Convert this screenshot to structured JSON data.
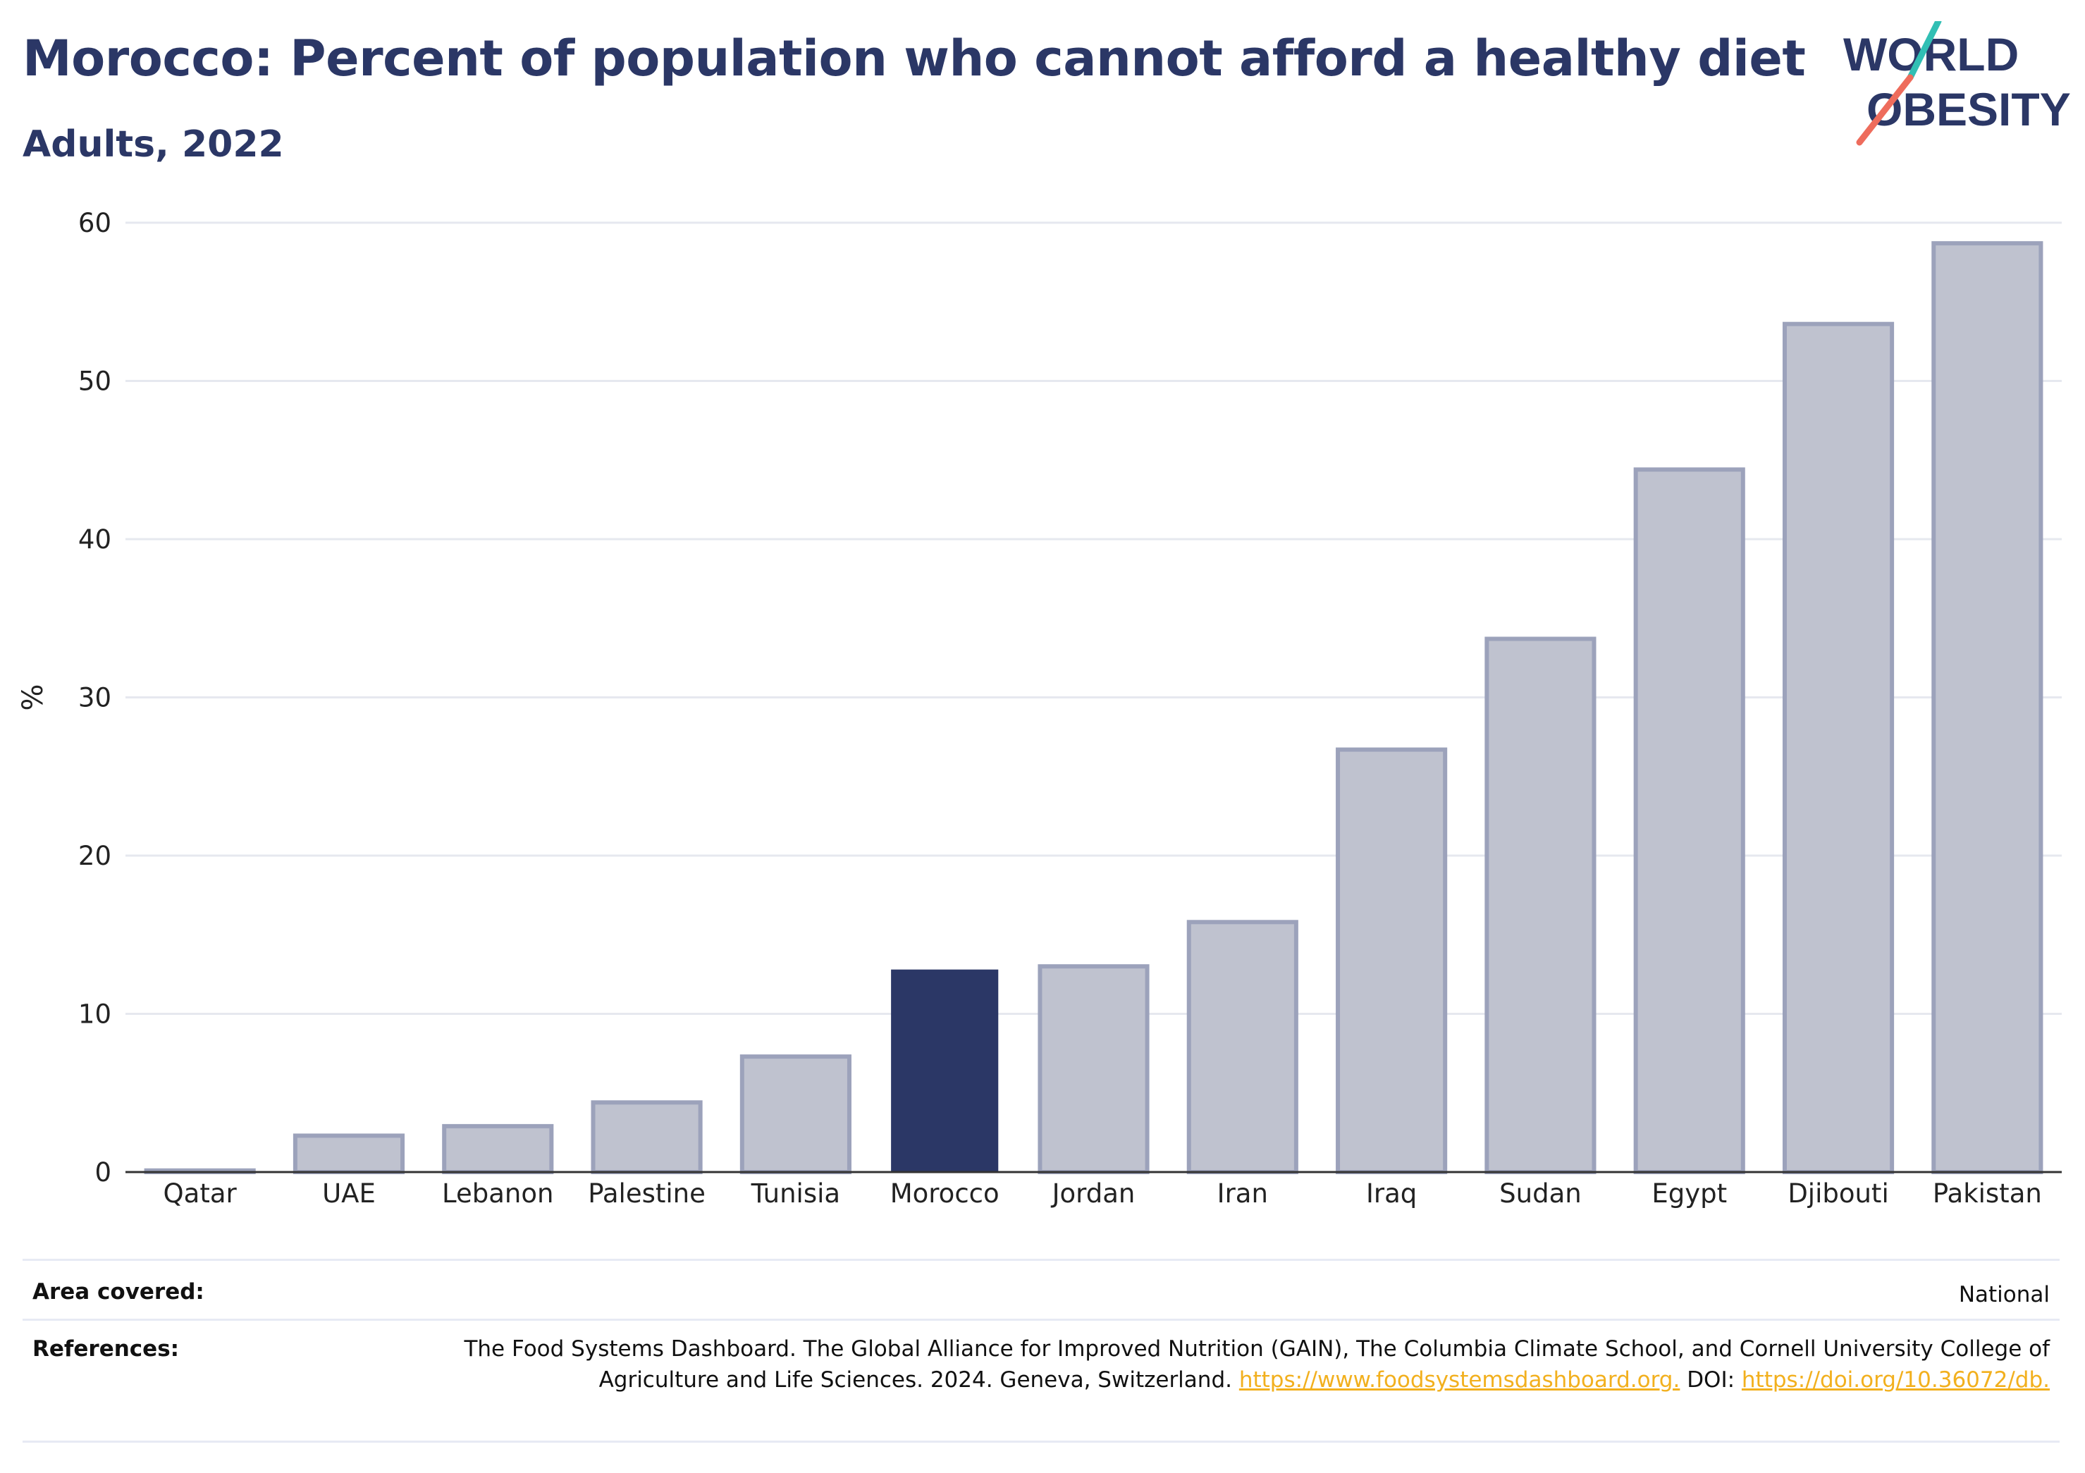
{
  "header": {
    "title": "Morocco: Percent of population who cannot afford a healthy diet",
    "subtitle": "Adults, 2022"
  },
  "logo": {
    "line1": "WORLD",
    "line2": "OBESITY"
  },
  "colors": {
    "highlight": "#2b3766",
    "bar_fill": "#bfc2cf",
    "bar_stroke": "#9ca2bb",
    "grid": "#e6e8ef",
    "link": "#f2b01e",
    "logo_teal": "#31bfb4",
    "logo_coral": "#ee6c5c"
  },
  "chart_data": {
    "type": "bar",
    "title": "Morocco: Percent of population who cannot afford a healthy diet",
    "subtitle": "Adults, 2022",
    "ylabel": "%",
    "xlabel": "",
    "ylim": [
      0,
      60
    ],
    "yticks": [
      0,
      10,
      20,
      30,
      40,
      50,
      60
    ],
    "grid": true,
    "highlight": "Morocco",
    "categories": [
      "Qatar",
      "UAE",
      "Lebanon",
      "Palestine",
      "Tunisia",
      "Morocco",
      "Jordan",
      "Iran",
      "Iraq",
      "Sudan",
      "Egypt",
      "Djibouti",
      "Pakistan"
    ],
    "values": [
      0.1,
      2.3,
      2.9,
      4.4,
      7.3,
      12.8,
      13.0,
      15.8,
      26.7,
      33.7,
      44.4,
      53.6,
      58.7
    ]
  },
  "footer": {
    "area_label": "Area covered:",
    "area_value": "National",
    "refs_label": "References:",
    "refs_text": "The Food Systems Dashboard. The Global Alliance for Improved Nutrition (GAIN), The Columbia Climate School, and Cornell University College of Agriculture and Life Sciences. 2024. Geneva, Switzerland.",
    "refs_link1": "https://www.foodsystemsdashboard.org.",
    "refs_doi_label": "DOI:",
    "refs_link2": "https://doi.org/10.36072/db."
  }
}
